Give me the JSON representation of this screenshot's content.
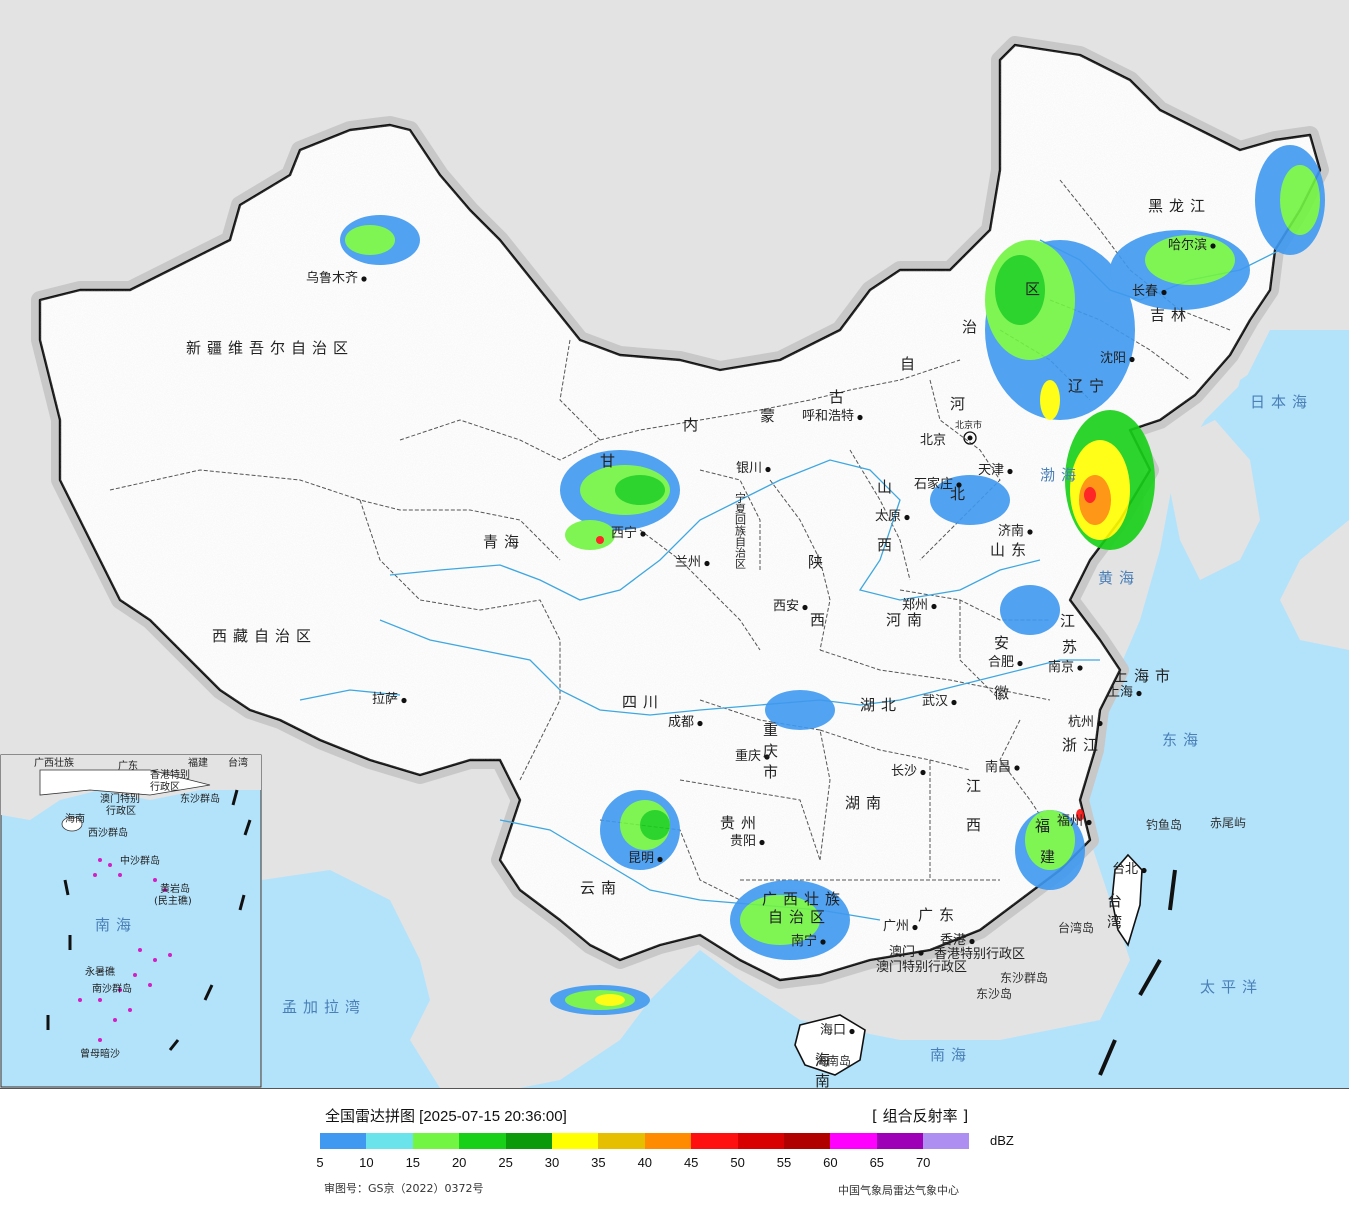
{
  "legend": {
    "title": "全国雷达拼图 [2025-07-15 20:36:00]",
    "product": "[ 组合反射率 ]",
    "unit": "dBZ",
    "ticks": [
      "5",
      "10",
      "15",
      "20",
      "25",
      "30",
      "35",
      "40",
      "45",
      "50",
      "55",
      "60",
      "65",
      "70"
    ],
    "colors": [
      "#3f99f0",
      "#6ae4ea",
      "#72f543",
      "#17d017",
      "#0a9a0a",
      "#ffff00",
      "#e6c000",
      "#ff8c00",
      "#ff1010",
      "#d80000",
      "#b00000",
      "#ff00ff",
      "#9e00b8",
      "#ae8ef0"
    ]
  },
  "footer": {
    "approval": "审图号：GS京（2022）0372号",
    "agency": "中国气象局雷达气象中心"
  },
  "provinces": {
    "xinjiang": "新疆维吾尔自治区",
    "xizang": "西藏自治区",
    "qinghai": "青海",
    "gansu": "甘",
    "neimenggu_nei": "内",
    "neimenggu_meng": "蒙",
    "neimenggu_gu": "古",
    "neimenggu_zi": "自",
    "neimenggu_zhi": "治",
    "neimenggu_qu": "区",
    "heilongjiang": "黑龙江",
    "jilin": "吉林",
    "liaoning": "辽宁",
    "hebei_he": "河",
    "hebei_bei": "北",
    "shanxi_shan": "山",
    "shanxi_xi": "西",
    "shaanxi_shan": "陕",
    "shaanxi_xi": "西",
    "ningxia": "宁夏回族自治区",
    "shandong": "山东",
    "henan": "河南",
    "jiangsu_jiang": "江",
    "jiangsu_su": "苏",
    "anhui_an": "安",
    "anhui_hui": "徽",
    "shanghai": "上海市",
    "zhejiang": "浙江",
    "hubei": "湖北",
    "hunan": "湖南",
    "jiangxi_jiang": "江",
    "jiangxi_xi": "西",
    "fujian_fu": "福",
    "fujian_jian": "建",
    "sichuan": "四川",
    "chongqing": "重庆市",
    "guizhou": "贵州",
    "yunnan": "云南",
    "guangxi_1": "广西壮族",
    "guangxi_2": "自治区",
    "guangdong": "广东",
    "hainan": "海南",
    "taiwan": "台湾",
    "tianjin": "天津",
    "hongkong": "香港特别行政区",
    "macau": "澳门特别行政区"
  },
  "cities": {
    "urumqi": "乌鲁木齐",
    "lhasa": "拉萨",
    "xining": "西宁",
    "lanzhou": "兰州",
    "yinchuan": "银川",
    "hohhot": "呼和浩特",
    "beijing": "北京",
    "beijing_city": "北京市",
    "tianjin": "天津",
    "shijiazhuang": "石家庄",
    "taiyuan": "太原",
    "jinan": "济南",
    "zhengzhou": "郑州",
    "xian": "西安",
    "harbin": "哈尔滨",
    "changchun": "长春",
    "shenyang": "沈阳",
    "hefei": "合肥",
    "nanjing": "南京",
    "shanghai": "上海",
    "hangzhou": "杭州",
    "wuhan": "武汉",
    "changsha": "长沙",
    "nanchang": "南昌",
    "fuzhou": "福州",
    "chengdu": "成都",
    "chongqing": "重庆",
    "guiyang": "贵阳",
    "kunming": "昆明",
    "nanning": "南宁",
    "guangzhou": "广州",
    "hongkong": "香港",
    "macau": "澳门",
    "haikou": "海口",
    "taipei": "台北"
  },
  "seas": {
    "japan_sea": "日本海",
    "bohai": "渤海",
    "yellow_sea": "黄海",
    "east_sea": "东海",
    "south_sea": "南海",
    "pacific": "太平洋",
    "bengal": "孟加拉湾"
  },
  "islands": {
    "diaoyu": "钓鱼岛",
    "chiwei": "赤尾屿",
    "taiwan_island": "台湾岛",
    "dongsha_islands": "东沙群岛",
    "dongsha": "东沙岛",
    "hainan_island": "海南岛"
  },
  "inset": {
    "guangxi": "广西壮族",
    "guangdong": "广东",
    "fujian": "福建",
    "taiwan": "台湾",
    "hongkong": "香港特别",
    "hongkong2": "行政区",
    "macau": "澳门特别",
    "macau2": "行政区",
    "dongsha": "东沙群岛",
    "hainan": "海南",
    "xisha": "西沙群岛",
    "zhongsha": "中沙群岛",
    "huangyan": "黄岩岛",
    "huangyan2": "(民主礁)",
    "nansha": "南沙群岛",
    "south_sea": "南海",
    "yongshu": "永暑礁",
    "zengmu": "曾母暗沙"
  }
}
